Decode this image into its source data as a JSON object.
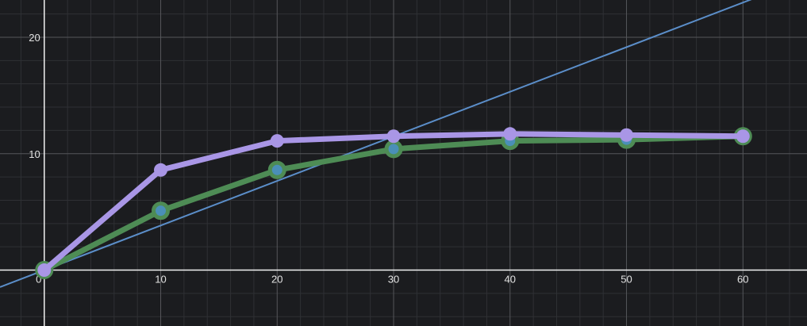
{
  "chart_data": {
    "type": "line",
    "title": "",
    "xlabel": "",
    "ylabel": "",
    "xlim": [
      -3.8,
      65.5
    ],
    "ylim": [
      -4.8,
      23.2
    ],
    "grid": true,
    "x_ticks": [
      0,
      10,
      20,
      30,
      40,
      50,
      60
    ],
    "y_ticks": [
      10,
      20
    ],
    "x": [
      0,
      10,
      20,
      30,
      40,
      50,
      60
    ],
    "series": [
      {
        "color": "#4e8c55",
        "marker_fill": "#4a8fb8",
        "values": [
          0,
          5.1,
          8.6,
          10.4,
          11.1,
          11.2,
          11.5
        ]
      },
      {
        "color": "#a996e6",
        "marker_fill": "#a996e6",
        "values": [
          0,
          8.6,
          11.1,
          11.5,
          11.7,
          11.6,
          11.5
        ]
      }
    ],
    "reference_line": {
      "color": "#5b8ec9",
      "slope": 0.383,
      "intercept": 0
    }
  }
}
